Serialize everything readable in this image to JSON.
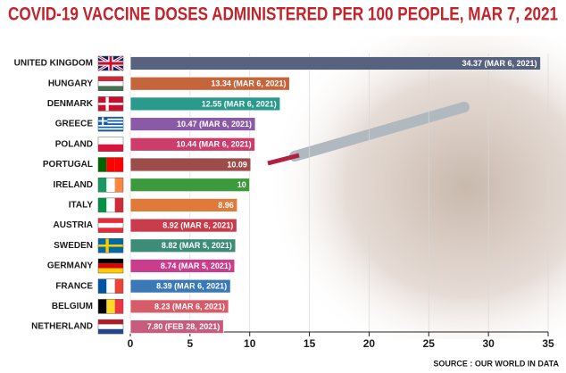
{
  "chart_data": {
    "type": "bar",
    "orientation": "horizontal",
    "title": "COVID-19 VACCINE DOSES ADMINISTERED PER 100 PEOPLE, MAR 7, 2021",
    "source": "SOURCE : OUR WORLD IN DATA",
    "categories": [
      "UNITED KINGDOM",
      "HUNGARY",
      "DENMARK",
      "GREECE",
      "POLAND",
      "PORTUGAL",
      "IRELAND",
      "ITALY",
      "AUSTRIA",
      "SWEDEN",
      "GERMANY",
      "FRANCE",
      "BELGIUM",
      "NETHERLAND"
    ],
    "values": [
      34.37,
      13.34,
      12.55,
      10.47,
      10.44,
      10.09,
      10,
      8.96,
      8.92,
      8.82,
      8.74,
      8.39,
      8.23,
      7.8
    ],
    "value_labels": [
      "34.37 (MAR 6, 2021)",
      "13.34 (MAR 6, 2021)",
      "12.55 (MAR 6, 2021)",
      "10.47 (MAR 6, 2021)",
      "10.44 (MAR 6, 2021)",
      "10.09",
      "10",
      "8.96",
      "8.92 (MAR 6, 2021)",
      "8.82 (MAR 5, 2021)",
      "8.74 (MAR 5, 2021)",
      "8.39 (MAR 6, 2021)",
      "8.23 (MAR 6, 2021)",
      "7.80 (FEB 28, 2021)"
    ],
    "colors": [
      "#56627e",
      "#c5653c",
      "#2a9a8c",
      "#8a5aa6",
      "#cc3d6c",
      "#9c4d4a",
      "#3a9a3c",
      "#e0793a",
      "#c93c4c",
      "#3c8c78",
      "#c93d8c",
      "#3a78b6",
      "#d75c6a",
      "#c95c7c"
    ],
    "xlim": [
      0,
      35
    ],
    "xticks": [
      0,
      5,
      10,
      15,
      20,
      25,
      30,
      35
    ],
    "grid": true
  }
}
